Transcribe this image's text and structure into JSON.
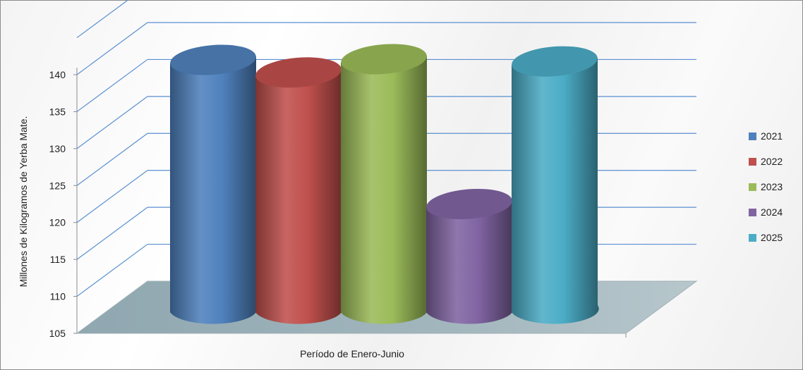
{
  "chart_data": {
    "type": "bar",
    "style": "3d-cylinder",
    "title": "",
    "xlabel": "Período de Enero-Junio",
    "ylabel": "Millones de Kilogramos de Yerba Mate.",
    "ylim": [
      105,
      140
    ],
    "yticks": [
      105,
      110,
      115,
      120,
      125,
      130,
      135,
      140
    ],
    "grid": true,
    "legend_position": "right",
    "series": [
      {
        "name": "2021",
        "value": 140.0,
        "color": "#4F81BD"
      },
      {
        "name": "2022",
        "value": 138.3,
        "color": "#C0504D"
      },
      {
        "name": "2023",
        "value": 140.1,
        "color": "#9BBB59"
      },
      {
        "name": "2024",
        "value": 120.5,
        "color": "#8064A2"
      },
      {
        "name": "2025",
        "value": 139.8,
        "color": "#4BACC6"
      }
    ]
  }
}
